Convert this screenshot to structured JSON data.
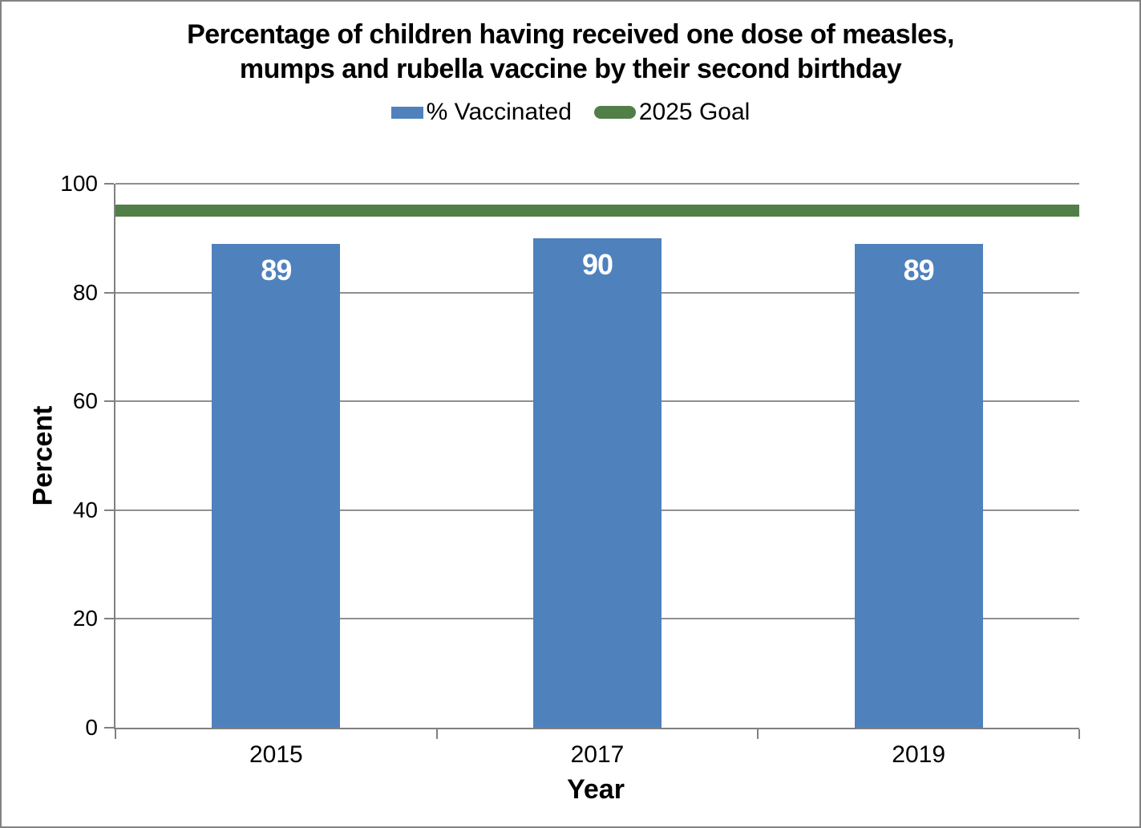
{
  "title": {
    "line1": "Percentage of children having received one dose of measles,",
    "line2": "mumps and rubella vaccine by their second birthday"
  },
  "legend": [
    {
      "label": "% Vaccinated",
      "swatch": "bar-swatch"
    },
    {
      "label": "2025 Goal",
      "swatch": "line-swatch"
    }
  ],
  "colors": {
    "bar": "#4F81BD",
    "goal": "#527E48",
    "grid": "#909090",
    "axis": "#808080",
    "bar_label": "#FFFFFF",
    "border": "#828282"
  },
  "chart_data": {
    "type": "bar",
    "title": "Percentage of children having received one dose of measles, mumps and rubella vaccine by their second birthday",
    "categories": [
      "2015",
      "2017",
      "2019"
    ],
    "series": [
      {
        "name": "% Vaccinated",
        "type": "bar",
        "values": [
          89,
          90,
          89
        ],
        "color": "#4F81BD"
      },
      {
        "name": "2025 Goal",
        "type": "goal-line",
        "value": 95,
        "color": "#527E48"
      }
    ],
    "bar_labels": [
      "89",
      "90",
      "89"
    ],
    "xlabel": "Year",
    "ylabel": "Percent",
    "ylim": [
      0,
      100
    ],
    "yticks": [
      0,
      20,
      40,
      60,
      80,
      100
    ],
    "grid": true,
    "legend_position": "top-center"
  }
}
